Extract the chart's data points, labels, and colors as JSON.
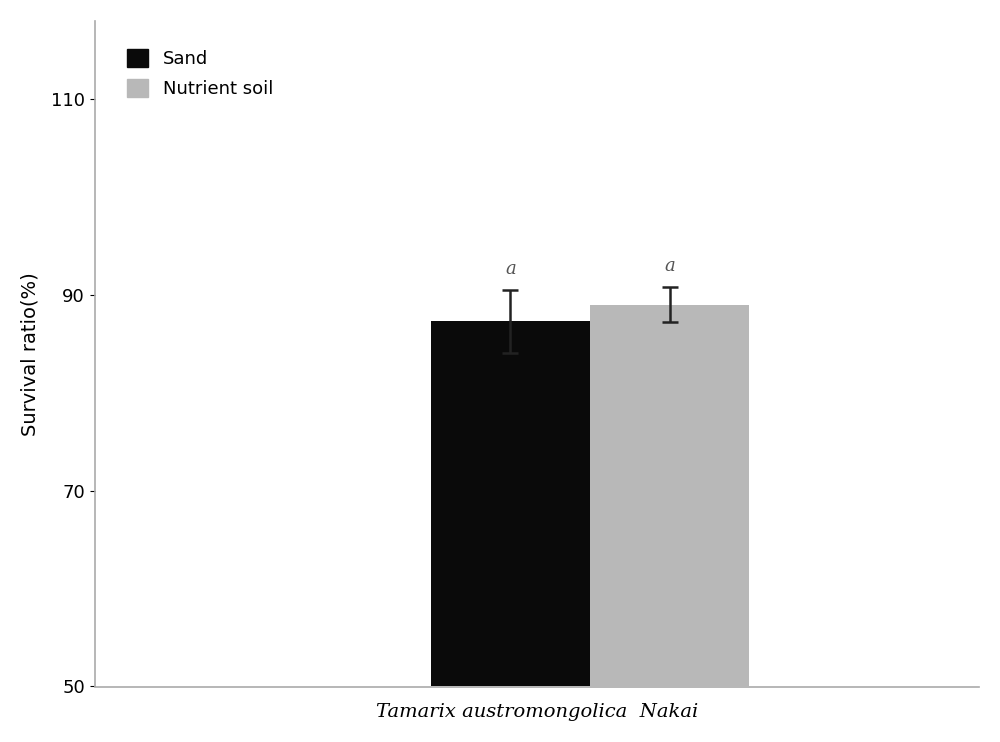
{
  "categories": [
    "Sand",
    "Nutrient soil"
  ],
  "values": [
    87.3,
    89.0
  ],
  "errors": [
    3.2,
    1.8
  ],
  "bar_colors": [
    "#0a0a0a",
    "#b8b8b8"
  ],
  "bar_width": 0.18,
  "bar_positions": [
    0.47,
    0.65
  ],
  "xlabel": "Tamarix austromongolica  Nakai",
  "ylabel": "Survival ratio(%)",
  "ylim": [
    50,
    118
  ],
  "xlim": [
    0.0,
    1.0
  ],
  "yticks": [
    50,
    70,
    90,
    110
  ],
  "significance_labels": [
    "a",
    "a"
  ],
  "legend_labels": [
    "Sand",
    "Nutrient soil"
  ],
  "legend_colors": [
    "#0a0a0a",
    "#b8b8b8"
  ],
  "axis_label_fontsize": 14,
  "tick_fontsize": 13,
  "sig_fontsize": 13,
  "background_color": "#ffffff",
  "plot_bg_color": "#ffffff",
  "error_cap_size": 6,
  "spine_color": "#aaaaaa"
}
